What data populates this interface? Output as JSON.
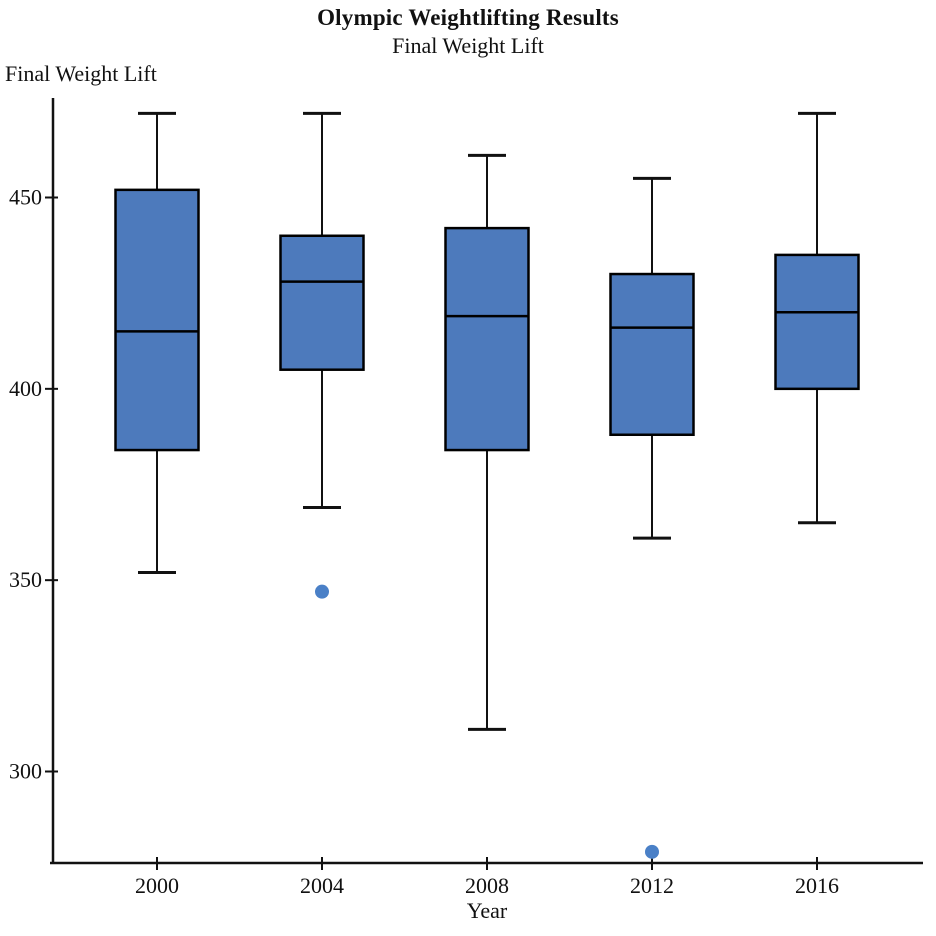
{
  "title": "Olympic Weightlifting Results",
  "subtitle": "Final Weight Lift",
  "chart_data": {
    "type": "boxplot",
    "title": "Olympic Weightlifting Results",
    "subtitle": "Final Weight Lift",
    "xlabel": "Year",
    "ylabel": "Final Weight Lift",
    "categories": [
      "2000",
      "2004",
      "2008",
      "2012",
      "2016"
    ],
    "y_ticks": [
      300,
      350,
      400,
      450
    ],
    "ylim": [
      276,
      476
    ],
    "grid": false,
    "legend": "none",
    "series": [
      {
        "category": "2000",
        "min": 352,
        "q1": 384,
        "median": 415,
        "q3": 452,
        "max": 472,
        "outliers": []
      },
      {
        "category": "2004",
        "min": 369,
        "q1": 405,
        "median": 428,
        "q3": 440,
        "max": 472,
        "outliers": [
          347
        ]
      },
      {
        "category": "2008",
        "min": 311,
        "q1": 384,
        "median": 419,
        "q3": 442,
        "max": 461,
        "outliers": []
      },
      {
        "category": "2012",
        "min": 361,
        "q1": 388,
        "median": 416,
        "q3": 430,
        "max": 455,
        "outliers": [
          279
        ]
      },
      {
        "category": "2016",
        "min": 365,
        "q1": 400,
        "median": 420,
        "q3": 435,
        "max": 472,
        "outliers": []
      }
    ],
    "colors": {
      "box_fill": "#4d7abc",
      "box_stroke": "#000000",
      "median_stroke": "#000000",
      "whisker_stroke": "#111111",
      "outlier_fill": "#4a80c7",
      "axis": "#111111",
      "text": "#111111"
    }
  }
}
